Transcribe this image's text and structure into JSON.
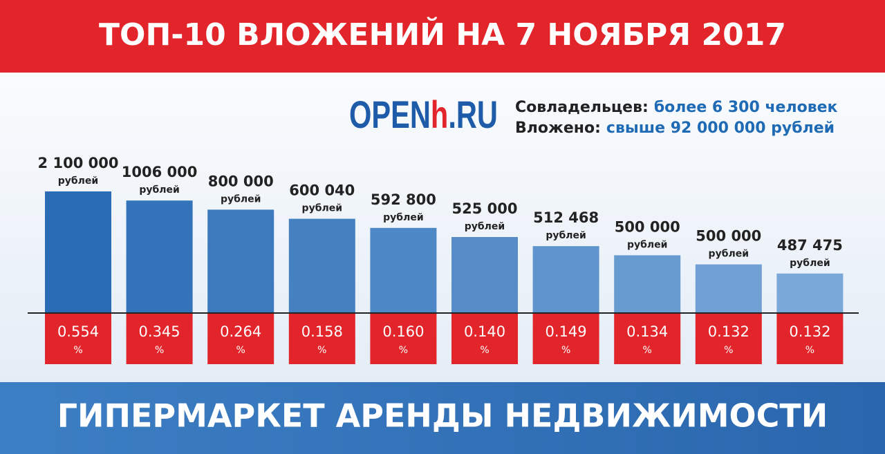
{
  "header": {
    "title": "ТОП-10 ВЛОЖЕНИЙ НА 7 НОЯБРЯ 2017"
  },
  "logo": {
    "main": "OPEN",
    "accent": "h",
    "suffix": ".RU"
  },
  "stats": [
    {
      "label": "Совладельцев:",
      "value": "более 6 300 человек"
    },
    {
      "label": "Вложено:",
      "value": "свыше 92 000 000 рублей"
    }
  ],
  "items": [
    {
      "amount": "2 100 000",
      "unit": "рублей",
      "share": "0.554",
      "share_unit": "%"
    },
    {
      "amount": "1006 000",
      "unit": "рублей",
      "share": "0.345",
      "share_unit": "%"
    },
    {
      "amount": "800 000",
      "unit": "рублей",
      "share": "0.264",
      "share_unit": "%"
    },
    {
      "amount": "600 040",
      "unit": "рублей",
      "share": "0.158",
      "share_unit": "%"
    },
    {
      "amount": "592 800",
      "unit": "рублей",
      "share": "0.160",
      "share_unit": "%"
    },
    {
      "amount": "525 000",
      "unit": "рублей",
      "share": "0.140",
      "share_unit": "%"
    },
    {
      "amount": "512 468",
      "unit": "рублей",
      "share": "0.149",
      "share_unit": "%"
    },
    {
      "amount": "500 000",
      "unit": "рублей",
      "share": "0.134",
      "share_unit": "%"
    },
    {
      "amount": "500 000",
      "unit": "рублей",
      "share": "0.132",
      "share_unit": "%"
    },
    {
      "amount": "487 475",
      "unit": "рублей",
      "share": "0.132",
      "share_unit": "%"
    }
  ],
  "footer": {
    "title": "ГИПЕРМАРКЕТ АРЕНДЫ НЕДВИЖИМОСТИ"
  }
}
